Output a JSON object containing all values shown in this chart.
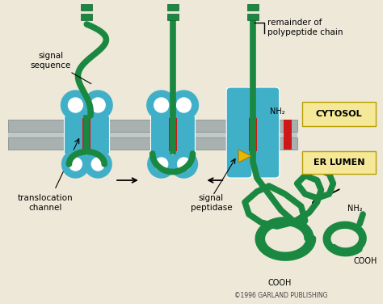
{
  "bg_color": "#ede8d8",
  "membrane_gray": "#a8b0b0",
  "membrane_light": "#c0c8c8",
  "teal": "#40b0c8",
  "teal_dark": "#2898b0",
  "green": "#1a8840",
  "green_dark": "#156030",
  "red": "#cc1818",
  "yellow": "#e8b800",
  "white": "#ffffff",
  "label_color": "#111111",
  "cytosol_bg": "#f5e898",
  "er_lumen_bg": "#f5e898",
  "lw_chain": 5.5,
  "lw_channel": 1.0,
  "labels": {
    "remainder": "remainder of\npolypeptide chain",
    "signal_sequence": "signal\nsequence",
    "translocation_channel": "translocation\nchannel",
    "signal_peptidase": "signal\npeptidase",
    "nh2_left": "NH₂",
    "nh2_right": "NH₂",
    "cooh_left": "COOH",
    "cooh_right": "COOH",
    "cytosol": "CYTOSOL",
    "er_lumen": "ER LUMEN",
    "copyright": "©1996 GARLAND PUBLISHING"
  }
}
